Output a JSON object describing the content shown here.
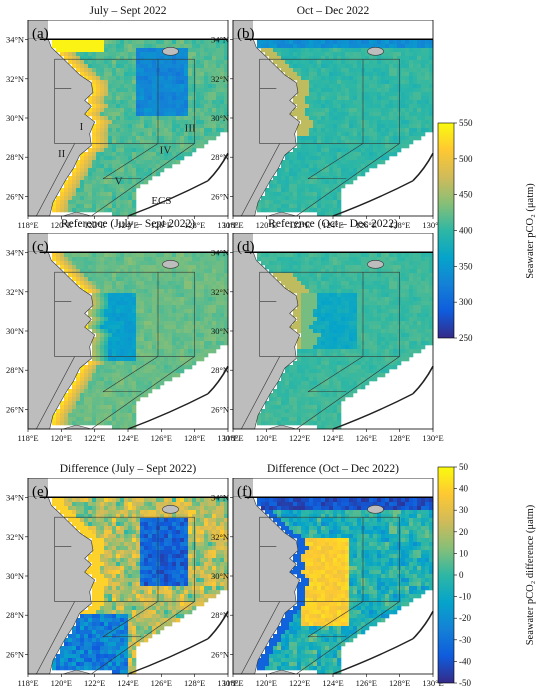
{
  "panels": [
    {
      "id": "a",
      "title": "July – Sept 2022",
      "letter": "(a)",
      "field": "jul",
      "regions": true
    },
    {
      "id": "b",
      "title": "Oct – Dec 2022",
      "letter": "(b)",
      "field": "oct",
      "regions": false
    },
    {
      "id": "c",
      "title": "Reference (July – Sept 2022)",
      "letter": "(c)",
      "field": "refjul",
      "regions": false
    },
    {
      "id": "d",
      "title": "Reference (Oct – Dec 2022)",
      "letter": "(d)",
      "field": "refoct",
      "regions": false
    },
    {
      "id": "e",
      "title": "Difference (July – Sept 2022)",
      "letter": "(e)",
      "field": "diffjul",
      "regions": false
    },
    {
      "id": "f",
      "title": "Difference (Oct – Dec 2022)",
      "letter": "(f)",
      "field": "diffoct",
      "regions": false
    }
  ],
  "lat_ticks": [
    "26°N",
    "28°N",
    "30°N",
    "32°N",
    "34°N"
  ],
  "lon_ticks": [
    "118°E",
    "120°E",
    "122°E",
    "124°E",
    "126°E",
    "128°E",
    "130°E"
  ],
  "region_labels": [
    "I",
    "II",
    "III",
    "IV",
    "V",
    "ECS"
  ],
  "colorbars": [
    {
      "id": "pco2",
      "label": "Seawater pCO₂ (μatm)",
      "ticks": [
        "550",
        "500",
        "450",
        "400",
        "350",
        "300",
        "250"
      ]
    },
    {
      "id": "diff",
      "label": "Seawater pCO₂ difference (μatm)",
      "ticks": [
        "50",
        "40",
        "30",
        "20",
        "10",
        "0",
        "-10",
        "-20",
        "-30",
        "-40",
        "-50"
      ]
    }
  ],
  "colors": {
    "land": "#bdbdbd",
    "coast": "#333333",
    "parula": [
      "#352a87",
      "#0f5cdd",
      "#1481d6",
      "#06a4ca",
      "#2eb7a4",
      "#87bf77",
      "#d1bb59",
      "#fec832",
      "#f9fb0e"
    ]
  }
}
